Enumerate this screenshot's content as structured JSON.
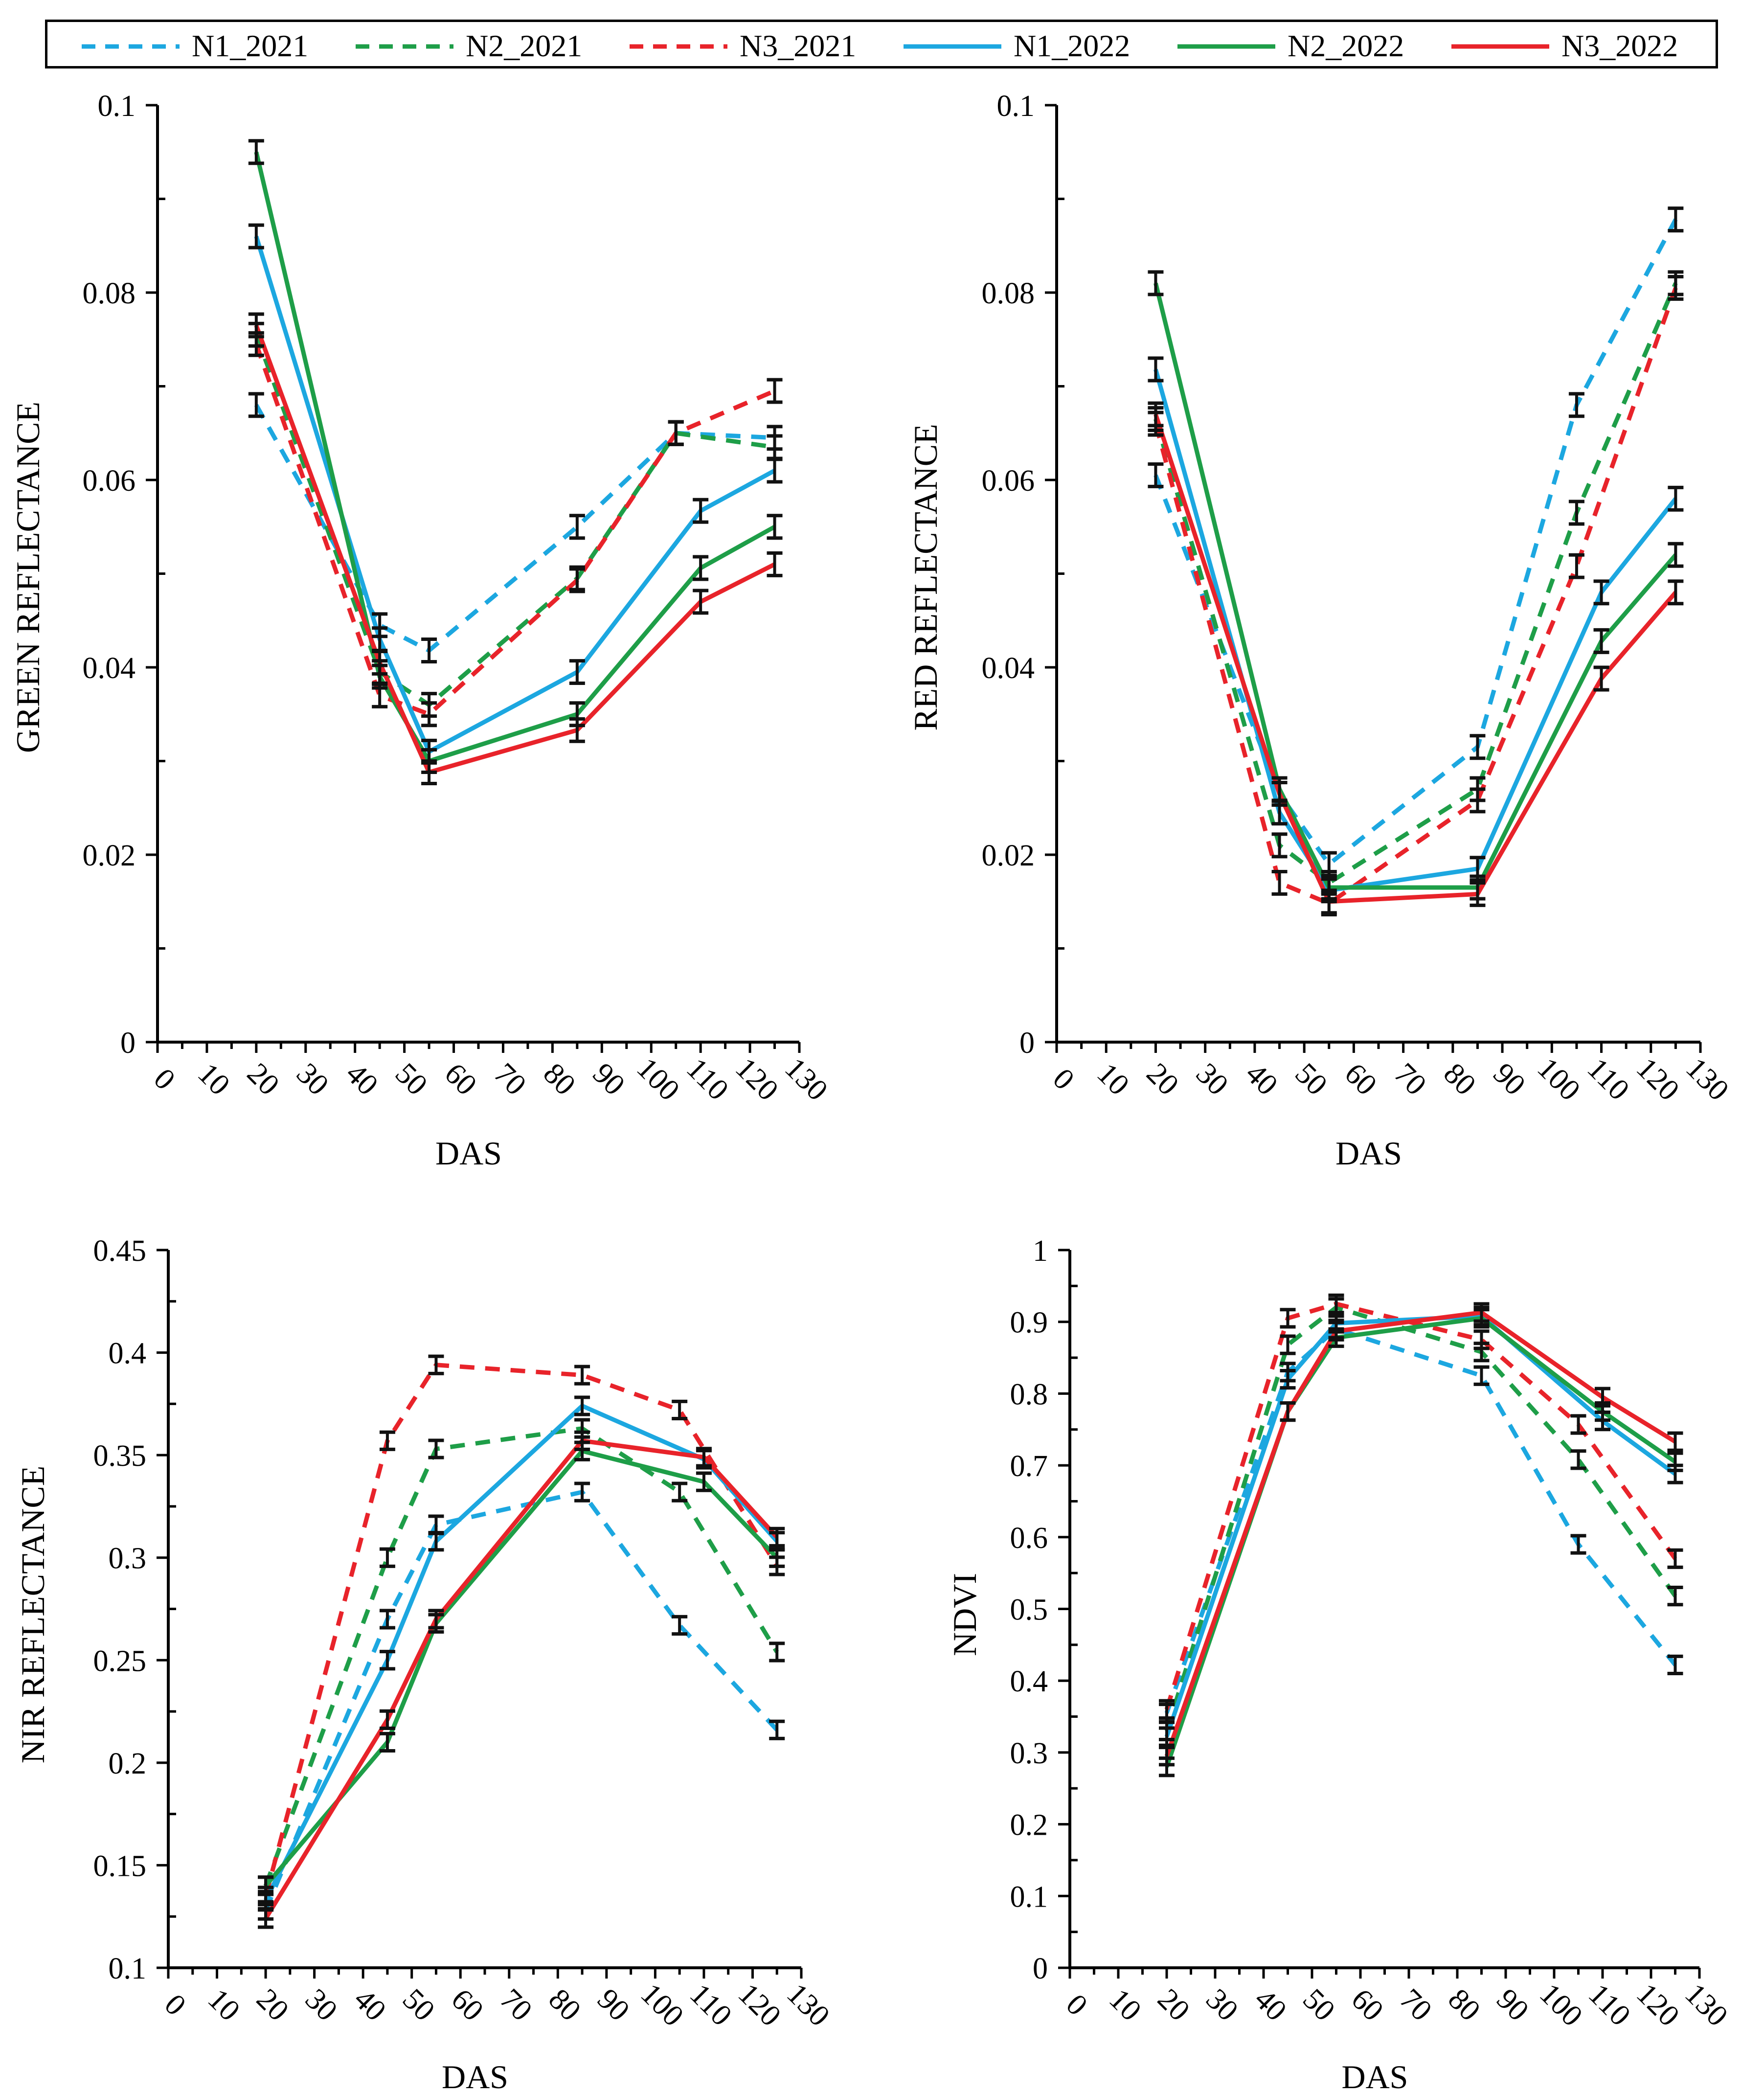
{
  "legend": [
    {
      "name": "N1_2021",
      "color": "#1CA7E0",
      "dashed": true
    },
    {
      "name": "N2_2021",
      "color": "#1E9E48",
      "dashed": true
    },
    {
      "name": "N3_2021",
      "color": "#E8232A",
      "dashed": true
    },
    {
      "name": "N1_2022",
      "color": "#1CA7E0",
      "dashed": false
    },
    {
      "name": "N2_2022",
      "color": "#1E9E48",
      "dashed": false
    },
    {
      "name": "N3_2022",
      "color": "#E8232A",
      "dashed": false
    }
  ],
  "chart_data": [
    {
      "type": "line",
      "title": "",
      "xlabel": "DAS",
      "ylabel": "GREEN REFLECTANCE",
      "xlim": [
        0,
        130
      ],
      "ylim": [
        0,
        0.1
      ],
      "xticks": [
        "0",
        "10",
        "20",
        "30",
        "40",
        "50",
        "60",
        "70",
        "80",
        "90",
        "100",
        "110",
        "120",
        "130"
      ],
      "yticks": [
        "0",
        "0.02",
        "0.04",
        "0.06",
        "0.08",
        "0.1"
      ],
      "series": [
        {
          "name": "N1_2021",
          "x": [
            20,
            45,
            55,
            85,
            105,
            125
          ],
          "y": [
            0.068,
            0.0445,
            0.0418,
            0.055,
            0.065,
            0.0645
          ]
        },
        {
          "name": "N2_2021",
          "x": [
            20,
            45,
            55,
            85,
            105,
            125
          ],
          "y": [
            0.0755,
            0.0395,
            0.036,
            0.0495,
            0.065,
            0.0635
          ]
        },
        {
          "name": "N3_2021",
          "x": [
            20,
            45,
            55,
            85,
            105,
            125
          ],
          "y": [
            0.0745,
            0.037,
            0.035,
            0.0493,
            0.065,
            0.0695
          ]
        },
        {
          "name": "N1_2022",
          "x": [
            20,
            45,
            55,
            85,
            110,
            125
          ],
          "y": [
            0.086,
            0.043,
            0.031,
            0.0395,
            0.0567,
            0.061
          ]
        },
        {
          "name": "N2_2022",
          "x": [
            20,
            45,
            55,
            85,
            110,
            125
          ],
          "y": [
            0.095,
            0.039,
            0.03,
            0.035,
            0.0506,
            0.055
          ]
        },
        {
          "name": "N3_2022",
          "x": [
            20,
            45,
            55,
            85,
            110,
            125
          ],
          "y": [
            0.0765,
            0.0405,
            0.0288,
            0.0333,
            0.047,
            0.051
          ]
        }
      ]
    },
    {
      "type": "line",
      "title": "",
      "xlabel": "DAS",
      "ylabel": "RED REFLECTANCE",
      "xlim": [
        0,
        130
      ],
      "ylim": [
        0,
        0.1
      ],
      "xticks": [
        "0",
        "10",
        "20",
        "30",
        "40",
        "50",
        "60",
        "70",
        "80",
        "90",
        "100",
        "110",
        "120",
        "130"
      ],
      "yticks": [
        "0",
        "0.02",
        "0.04",
        "0.06",
        "0.08",
        "0.1"
      ],
      "series": [
        {
          "name": "N1_2021",
          "x": [
            20,
            45,
            55,
            85,
            105,
            125
          ],
          "y": [
            0.0605,
            0.0265,
            0.019,
            0.0315,
            0.068,
            0.0878
          ]
        },
        {
          "name": "N2_2021",
          "x": [
            20,
            45,
            55,
            85,
            105,
            125
          ],
          "y": [
            0.0665,
            0.021,
            0.017,
            0.027,
            0.0565,
            0.081
          ]
        },
        {
          "name": "N3_2021",
          "x": [
            20,
            45,
            55,
            85,
            105,
            125
          ],
          "y": [
            0.066,
            0.017,
            0.0148,
            0.0258,
            0.0508,
            0.0805
          ]
        },
        {
          "name": "N1_2022",
          "x": [
            20,
            45,
            55,
            85,
            110,
            125
          ],
          "y": [
            0.0718,
            0.0245,
            0.0162,
            0.0185,
            0.048,
            0.058
          ]
        },
        {
          "name": "N2_2022",
          "x": [
            20,
            45,
            55,
            85,
            110,
            125
          ],
          "y": [
            0.081,
            0.027,
            0.0165,
            0.0165,
            0.0428,
            0.052
          ]
        },
        {
          "name": "N3_2022",
          "x": [
            20,
            45,
            55,
            85,
            110,
            125
          ],
          "y": [
            0.067,
            0.0265,
            0.015,
            0.0158,
            0.0388,
            0.048
          ]
        }
      ]
    },
    {
      "type": "line",
      "title": "",
      "xlabel": "DAS",
      "ylabel": "NIR REFLECTANCE",
      "xlim": [
        0,
        130
      ],
      "ylim": [
        0.1,
        0.45
      ],
      "xticks": [
        "0",
        "10",
        "20",
        "30",
        "40",
        "50",
        "60",
        "70",
        "80",
        "90",
        "100",
        "110",
        "120",
        "130"
      ],
      "yticks": [
        "0.1",
        "0.15",
        "0.2",
        "0.25",
        "0.3",
        "0.35",
        "0.4",
        "0.45"
      ],
      "series": [
        {
          "name": "N1_2021",
          "x": [
            20,
            45,
            55,
            85,
            105,
            125
          ],
          "y": [
            0.128,
            0.27,
            0.316,
            0.332,
            0.267,
            0.216
          ]
        },
        {
          "name": "N2_2021",
          "x": [
            20,
            45,
            55,
            85,
            105,
            125
          ],
          "y": [
            0.14,
            0.3,
            0.353,
            0.363,
            0.332,
            0.254
          ]
        },
        {
          "name": "N3_2021",
          "x": [
            20,
            45,
            55,
            85,
            105,
            125
          ],
          "y": [
            0.135,
            0.357,
            0.394,
            0.389,
            0.372,
            0.296
          ]
        },
        {
          "name": "N1_2022",
          "x": [
            20,
            45,
            55,
            85,
            110,
            125
          ],
          "y": [
            0.133,
            0.25,
            0.308,
            0.374,
            0.348,
            0.308
          ]
        },
        {
          "name": "N2_2022",
          "x": [
            20,
            45,
            55,
            85,
            110,
            125
          ],
          "y": [
            0.14,
            0.21,
            0.268,
            0.352,
            0.337,
            0.3
          ]
        },
        {
          "name": "N3_2022",
          "x": [
            20,
            45,
            55,
            85,
            110,
            125
          ],
          "y": [
            0.124,
            0.221,
            0.27,
            0.357,
            0.349,
            0.31
          ]
        }
      ]
    },
    {
      "type": "line",
      "title": "",
      "xlabel": "DAS",
      "ylabel": "NDVI",
      "xlim": [
        0,
        130
      ],
      "ylim": [
        0,
        1
      ],
      "xticks": [
        "0",
        "10",
        "20",
        "30",
        "40",
        "50",
        "60",
        "70",
        "80",
        "90",
        "100",
        "110",
        "120",
        "130"
      ],
      "yticks": [
        "0",
        "0.1",
        "0.2",
        "0.3",
        "0.4",
        "0.5",
        "0.6",
        "0.7",
        "0.8",
        "0.9",
        "1"
      ],
      "series": [
        {
          "name": "N1_2021",
          "x": [
            20,
            45,
            55,
            85,
            105,
            125
          ],
          "y": [
            0.355,
            0.83,
            0.89,
            0.825,
            0.59,
            0.422
          ]
        },
        {
          "name": "N2_2021",
          "x": [
            20,
            45,
            55,
            85,
            105,
            125
          ],
          "y": [
            0.33,
            0.868,
            0.92,
            0.858,
            0.708,
            0.518
          ]
        },
        {
          "name": "N3_2021",
          "x": [
            20,
            45,
            55,
            85,
            105,
            125
          ],
          "y": [
            0.36,
            0.905,
            0.925,
            0.875,
            0.757,
            0.57
          ]
        },
        {
          "name": "N1_2022",
          "x": [
            20,
            45,
            55,
            85,
            110,
            125
          ],
          "y": [
            0.322,
            0.82,
            0.898,
            0.908,
            0.762,
            0.688
          ]
        },
        {
          "name": "N2_2022",
          "x": [
            20,
            45,
            55,
            85,
            110,
            125
          ],
          "y": [
            0.28,
            0.775,
            0.878,
            0.905,
            0.775,
            0.705
          ]
        },
        {
          "name": "N3_2022",
          "x": [
            20,
            45,
            55,
            85,
            110,
            125
          ],
          "y": [
            0.295,
            0.775,
            0.887,
            0.913,
            0.795,
            0.733
          ]
        }
      ]
    }
  ]
}
